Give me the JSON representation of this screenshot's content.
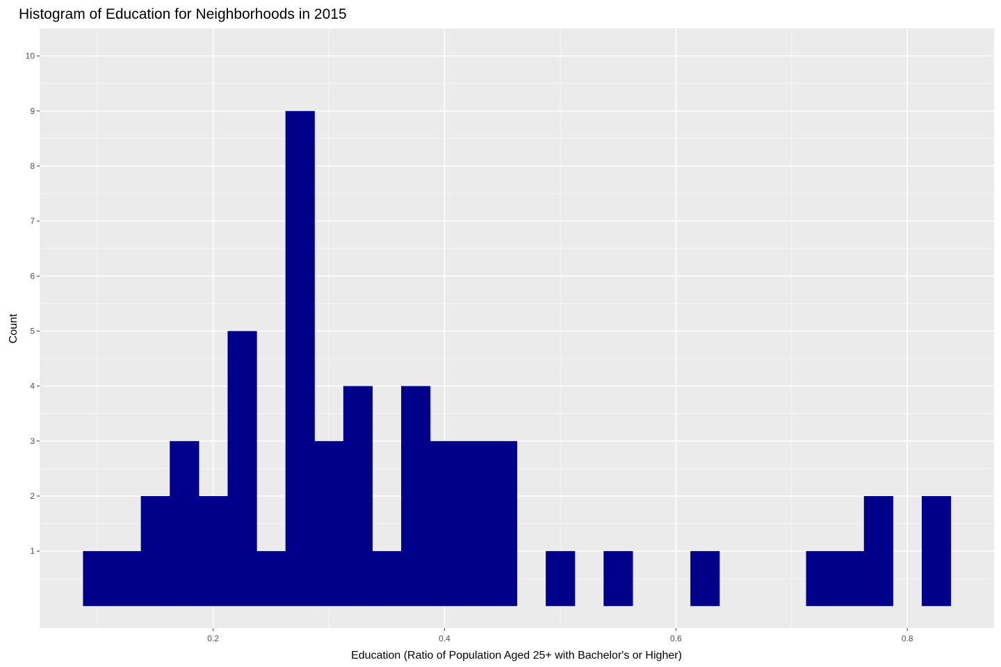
{
  "colors": {
    "panel_background": "#EBEBEB",
    "grid_major": "#FFFFFF",
    "grid_minor": "#F4F4F4",
    "bar_fill": "#00008B",
    "tick_text": "#4D4D4D",
    "tick_mark": "#333333"
  },
  "chart_data": {
    "type": "bar",
    "title": "Histogram of Education for Neighborhoods in 2015",
    "xlabel": "Education (Ratio of Population Aged 25+ with Bachelor's or Higher)",
    "ylabel": "Count",
    "xlim": [
      0.05,
      0.875
    ],
    "ylim": [
      -0.4,
      10.5
    ],
    "x_ticks": [
      0.2,
      0.4,
      0.6,
      0.8
    ],
    "x_tick_labels": [
      "0.2",
      "0.4",
      "0.6",
      "0.8"
    ],
    "y_ticks": [
      1,
      2,
      3,
      4,
      5,
      6,
      7,
      8,
      9,
      10
    ],
    "y_tick_labels": [
      "1",
      "2",
      "3",
      "4",
      "5",
      "6",
      "7",
      "8",
      "9",
      "10"
    ],
    "grid": true,
    "bin_width": 0.025,
    "bins": [
      {
        "x_start": 0.0875,
        "x_end": 0.1125,
        "count": 1
      },
      {
        "x_start": 0.1125,
        "x_end": 0.1375,
        "count": 1
      },
      {
        "x_start": 0.1375,
        "x_end": 0.1625,
        "count": 2
      },
      {
        "x_start": 0.1625,
        "x_end": 0.1875,
        "count": 3
      },
      {
        "x_start": 0.1875,
        "x_end": 0.2125,
        "count": 2
      },
      {
        "x_start": 0.2125,
        "x_end": 0.2375,
        "count": 5
      },
      {
        "x_start": 0.2375,
        "x_end": 0.2625,
        "count": 1
      },
      {
        "x_start": 0.2625,
        "x_end": 0.2875,
        "count": 9
      },
      {
        "x_start": 0.2875,
        "x_end": 0.3125,
        "count": 3
      },
      {
        "x_start": 0.3125,
        "x_end": 0.3375,
        "count": 4
      },
      {
        "x_start": 0.3375,
        "x_end": 0.3625,
        "count": 1
      },
      {
        "x_start": 0.3625,
        "x_end": 0.3875,
        "count": 4
      },
      {
        "x_start": 0.3875,
        "x_end": 0.4125,
        "count": 3
      },
      {
        "x_start": 0.4125,
        "x_end": 0.4375,
        "count": 3
      },
      {
        "x_start": 0.4375,
        "x_end": 0.4625,
        "count": 3
      },
      {
        "x_start": 0.4875,
        "x_end": 0.5125,
        "count": 1
      },
      {
        "x_start": 0.5375,
        "x_end": 0.5625,
        "count": 1
      },
      {
        "x_start": 0.6125,
        "x_end": 0.6375,
        "count": 1
      },
      {
        "x_start": 0.7125,
        "x_end": 0.7375,
        "count": 1
      },
      {
        "x_start": 0.7375,
        "x_end": 0.7625,
        "count": 1
      },
      {
        "x_start": 0.7625,
        "x_end": 0.7875,
        "count": 2
      },
      {
        "x_start": 0.8125,
        "x_end": 0.8375,
        "count": 2
      }
    ]
  }
}
